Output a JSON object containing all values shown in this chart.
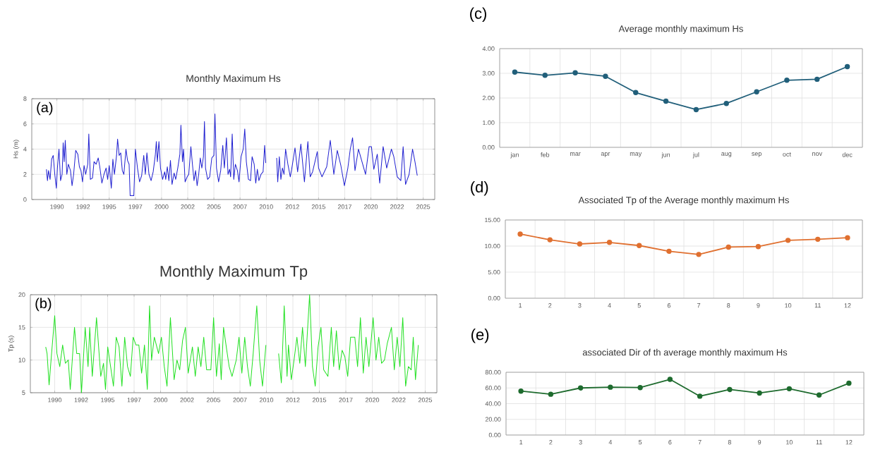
{
  "chart_data": [
    {
      "type": "line",
      "title": "Monthly Maximum Hs",
      "ylabel": "Hs (m)",
      "annotations": [
        "(a)"
      ],
      "color": "#2020d0",
      "grid": true,
      "xlim": [
        1987.6,
        2026.1
      ],
      "ylim": [
        0,
        8
      ],
      "yticks": [
        0,
        2,
        4,
        6,
        8
      ],
      "xticks": [
        {
          "value": 1990,
          "label": "1990"
        },
        {
          "value": 1992.5,
          "label": "1992"
        },
        {
          "value": 1995,
          "label": "1995"
        },
        {
          "value": 1997.5,
          "label": "1997"
        },
        {
          "value": 2000,
          "label": "2000"
        },
        {
          "value": 2002.5,
          "label": "2002"
        },
        {
          "value": 2005,
          "label": "2005"
        },
        {
          "value": 2007.5,
          "label": "2007"
        },
        {
          "value": 2010,
          "label": "2010"
        },
        {
          "value": 2012.5,
          "label": "2012"
        },
        {
          "value": 2015,
          "label": "2015"
        },
        {
          "value": 2017.5,
          "label": "2017"
        },
        {
          "value": 2020,
          "label": "2020"
        },
        {
          "value": 2022.5,
          "label": "2022"
        },
        {
          "value": 2025,
          "label": "2025"
        }
      ],
      "x": [
        1989.0,
        1989.1,
        1989.2,
        1989.35,
        1989.5,
        1989.65,
        1989.8,
        1989.95,
        1990.05,
        1990.2,
        1990.35,
        1990.5,
        1990.6,
        1990.7,
        1990.8,
        1990.95,
        1991.1,
        1991.3,
        1991.45,
        1991.6,
        1991.8,
        1992.0,
        1992.15,
        1992.3,
        1992.45,
        1992.6,
        1992.75,
        1992.95,
        1993.05,
        1993.2,
        1993.4,
        1993.55,
        1993.75,
        1993.95,
        1994.1,
        1994.3,
        1994.5,
        1994.7,
        1994.85,
        1995.0,
        1995.2,
        1995.35,
        1995.5,
        1995.7,
        1995.8,
        1995.95,
        1996.1,
        1996.25,
        1996.4,
        1996.6,
        1996.75,
        1996.9,
        1997.0,
        1997.35,
        1997.5,
        1997.7,
        1997.9,
        1998.1,
        1998.3,
        1998.45,
        1998.6,
        1998.8,
        1999.0,
        1999.2,
        1999.4,
        1999.5,
        1999.6,
        1999.75,
        1999.9,
        2000.1,
        2000.3,
        2000.4,
        2000.55,
        2000.7,
        2000.85,
        2001.0,
        2001.2,
        2001.35,
        2001.55,
        2001.75,
        2001.85,
        2002.0,
        2002.1,
        2002.25,
        2002.45,
        2002.6,
        2002.8,
        2002.95,
        2003.1,
        2003.25,
        2003.4,
        2003.55,
        2003.7,
        2003.85,
        2004.0,
        2004.1,
        2004.2,
        2004.4,
        2004.6,
        2004.8,
        2005.0,
        2005.1,
        2005.25,
        2005.45,
        2005.65,
        2005.85,
        2006.0,
        2006.2,
        2006.35,
        2006.5,
        2006.6,
        2006.75,
        2006.9,
        2007.05,
        2007.25,
        2007.4,
        2007.6,
        2007.8,
        2007.95,
        2008.1,
        2008.3,
        2008.5,
        2008.65,
        2008.85,
        2009.0,
        2009.15,
        2009.3,
        2009.5,
        2009.7,
        2009.85,
        2009.95,
        2010.5,
        2011.0,
        2011.1,
        2011.25,
        2011.4,
        2011.55,
        2011.7,
        2011.85,
        2012.07,
        2012.3,
        2012.45,
        2012.75,
        2013.0,
        2013.31,
        2013.65,
        2013.98,
        2014.2,
        2014.43,
        2014.88,
        2015.0,
        2015.33,
        2015.78,
        2016.12,
        2016.46,
        2016.79,
        2017.13,
        2017.47,
        2017.8,
        2018.03,
        2018.25,
        2018.48,
        2018.81,
        2019.15,
        2019.49,
        2019.83,
        2020.05,
        2020.28,
        2020.61,
        2020.84,
        2021.17,
        2021.51,
        2021.96,
        2022.19,
        2022.52,
        2022.86,
        2023.08,
        2023.31,
        2023.65,
        2023.98,
        2024.21,
        2024.43
      ],
      "values": [
        2.4,
        1.5,
        2.3,
        1.6,
        3.2,
        3.5,
        2.0,
        0.9,
        2.5,
        4.0,
        1.5,
        2.0,
        4.5,
        3.0,
        4.7,
        2.0,
        2.8,
        2.3,
        1.1,
        2.0,
        3.9,
        3.6,
        2.6,
        2.3,
        1.4,
        2.7,
        2.0,
        2.8,
        5.2,
        1.6,
        1.7,
        3.0,
        2.8,
        3.3,
        2.6,
        1.3,
        2.0,
        2.5,
        1.6,
        2.7,
        0.9,
        3.2,
        2.0,
        3.5,
        4.8,
        3.5,
        3.7,
        2.3,
        2.0,
        4.0,
        3.1,
        2.8,
        0.3,
        0.3,
        4.0,
        2.5,
        1.4,
        1.9,
        3.5,
        2.0,
        3.7,
        2.0,
        1.5,
        2.2,
        3.5,
        4.6,
        3.0,
        4.6,
        2.5,
        1.6,
        2.2,
        1.6,
        2.6,
        1.5,
        3.1,
        1.2,
        2.1,
        1.6,
        2.5,
        3.6,
        5.9,
        3.0,
        4.0,
        1.4,
        1.8,
        2.0,
        4.2,
        2.8,
        1.5,
        2.3,
        1.1,
        2.0,
        3.3,
        2.5,
        3.4,
        6.2,
        2.5,
        1.6,
        1.8,
        3.3,
        3.5,
        6.8,
        2.5,
        1.4,
        2.3,
        4.3,
        2.5,
        4.9,
        2.0,
        2.4,
        1.8,
        5.2,
        1.6,
        2.8,
        2.3,
        1.4,
        3.4,
        4.0,
        5.6,
        3.0,
        1.6,
        1.5,
        3.4,
        2.8,
        1.3,
        2.4,
        1.5,
        2.0,
        2.2,
        4.3,
        2.9,
        null,
        3.3,
        1.4,
        3.4,
        1.6,
        2.5,
        2.0,
        4.0,
        2.8,
        1.8,
        2.5,
        4.1,
        2.2,
        4.4,
        1.4,
        4.6,
        1.8,
        2.2,
        3.8,
        2.5,
        1.8,
        2.6,
        4.7,
        2.0,
        3.9,
        2.7,
        1.1,
        2.5,
        4.0,
        4.9,
        2.3,
        4.0,
        3.0,
        2.0,
        4.2,
        4.2,
        2.4,
        3.6,
        1.3,
        4.2,
        2.5,
        4.0,
        3.4,
        1.8,
        1.5,
        4.2,
        1.2,
        2.0,
        4.0,
        3.0,
        1.9
      ]
    },
    {
      "type": "line",
      "title": "Monthly Maximum Tp",
      "ylabel": "Tp (s)",
      "annotations": [
        "(b)"
      ],
      "color": "#22e022",
      "grid": true,
      "xlim": [
        1987.7,
        2026.1
      ],
      "ylim": [
        5,
        20
      ],
      "yticks": [
        5,
        10,
        15,
        20
      ],
      "xticks": [
        {
          "value": 1990,
          "label": "1990"
        },
        {
          "value": 1992.5,
          "label": "1992"
        },
        {
          "value": 1995,
          "label": "1995"
        },
        {
          "value": 1997.5,
          "label": "1997"
        },
        {
          "value": 2000,
          "label": "2000"
        },
        {
          "value": 2002.5,
          "label": "2002"
        },
        {
          "value": 2005,
          "label": "2005"
        },
        {
          "value": 2007.5,
          "label": "2007"
        },
        {
          "value": 2010,
          "label": "2010"
        },
        {
          "value": 2012.5,
          "label": "2012"
        },
        {
          "value": 2015,
          "label": "2015"
        },
        {
          "value": 2017.5,
          "label": "2017"
        },
        {
          "value": 2020,
          "label": "2020"
        },
        {
          "value": 2022.5,
          "label": "2022"
        },
        {
          "value": 2025,
          "label": "2025"
        }
      ],
      "x": [
        1989.15,
        1989.28,
        1989.47,
        1989.68,
        1990.0,
        1990.21,
        1990.48,
        1990.75,
        1991.01,
        1991.28,
        1991.47,
        1991.87,
        1992.08,
        1992.35,
        1992.53,
        1992.88,
        1993.15,
        1993.31,
        1993.55,
        1993.95,
        1994.35,
        1994.61,
        1994.8,
        1995.01,
        1995.28,
        1995.55,
        1995.81,
        1996.08,
        1996.35,
        1996.61,
        1996.88,
        1997.15,
        1997.41,
        1997.68,
        1997.95,
        1998.21,
        1998.48,
        1998.75,
        1998.96,
        1999.15,
        1999.41,
        1999.81,
        2000.08,
        2000.35,
        2000.61,
        2000.93,
        2001.28,
        2001.55,
        2001.81,
        2002.08,
        2002.35,
        2002.61,
        2003.01,
        2003.28,
        2003.55,
        2003.81,
        2004.08,
        2004.35,
        2004.75,
        2005.01,
        2005.28,
        2005.55,
        2005.73,
        2005.95,
        2006.21,
        2006.48,
        2006.75,
        2007.15,
        2007.41,
        2007.68,
        2007.95,
        2008.21,
        2008.48,
        2008.75,
        2009.09,
        2009.36,
        2009.63,
        2009.95,
        2010.5,
        2011.15,
        2011.41,
        2011.68,
        2011.95,
        2012.08,
        2012.35,
        2012.61,
        2012.88,
        2013.15,
        2013.41,
        2013.68,
        2014.08,
        2014.35,
        2014.61,
        2014.88,
        2015.15,
        2015.41,
        2015.81,
        2016.13,
        2016.35,
        2016.61,
        2016.88,
        2017.15,
        2017.41,
        2017.68,
        2017.95,
        2018.35,
        2018.61,
        2018.88,
        2019.15,
        2019.41,
        2019.68,
        2020.08,
        2020.35,
        2020.61,
        2020.88,
        2021.15,
        2021.41,
        2021.81,
        2022.08,
        2022.35,
        2022.61,
        2022.88,
        2023.15,
        2023.41,
        2023.68,
        2023.87,
        2024.08,
        2024.35
      ],
      "values": [
        12,
        11,
        6.2,
        10.5,
        16.8,
        11,
        9,
        12.3,
        9.5,
        10,
        5.5,
        15,
        11,
        11,
        5,
        15,
        9,
        15,
        7.5,
        16.5,
        7.5,
        9.5,
        5.5,
        12,
        9,
        6,
        13.5,
        12,
        6,
        13.5,
        9,
        7.5,
        13.5,
        12.3,
        12.3,
        8,
        12.3,
        5.5,
        18.3,
        10,
        13.5,
        11,
        13.5,
        9,
        6,
        16.5,
        7,
        10,
        8.5,
        13,
        15,
        8,
        12,
        7.5,
        12,
        9,
        13.5,
        8.5,
        8.5,
        16.5,
        7.5,
        12.5,
        7,
        15,
        12,
        9,
        7.5,
        10,
        13.5,
        8,
        13.5,
        9,
        6,
        11,
        18.3,
        10,
        6,
        12.3,
        null,
        11,
        6.5,
        18.3,
        7.5,
        12.3,
        7,
        10,
        13.5,
        9.5,
        15,
        9,
        20,
        9,
        6,
        12,
        15,
        8.5,
        7.5,
        15,
        9,
        14.5,
        8.5,
        11.5,
        10.5,
        7.5,
        13.5,
        13.5,
        9,
        16.5,
        8,
        13.5,
        9,
        16.5,
        10,
        13.5,
        9.5,
        10,
        12.5,
        15,
        8.5,
        13.5,
        9,
        16.5,
        6,
        9,
        8.5,
        13.5,
        7,
        12.3
      ]
    },
    {
      "type": "line",
      "title": "Average monthly maximum Hs",
      "annotations": [
        "(c)"
      ],
      "color": "#215f7a",
      "grid": true,
      "marker": "circle",
      "categories": [
        "jan",
        "feb",
        "mar",
        "apr",
        "may",
        "jun",
        "jul",
        "aug",
        "sep",
        "oct",
        "nov",
        "dec"
      ],
      "values": [
        3.05,
        2.92,
        3.02,
        2.88,
        2.22,
        1.87,
        1.53,
        1.78,
        2.25,
        2.72,
        2.76,
        3.27
      ],
      "ylim": [
        0,
        4
      ],
      "yticks": [
        {
          "value": 0,
          "label": "0.00"
        },
        {
          "value": 1,
          "label": "1.00"
        },
        {
          "value": 2,
          "label": "2.00"
        },
        {
          "value": 3,
          "label": "3.00"
        },
        {
          "value": 4,
          "label": "4.00"
        }
      ]
    },
    {
      "type": "line",
      "title": "Associated Tp of the Average monthly maximum Hs",
      "annotations": [
        "(d)"
      ],
      "color": "#e07030",
      "grid": true,
      "marker": "circle",
      "categories": [
        "1",
        "2",
        "3",
        "4",
        "5",
        "6",
        "7",
        "8",
        "9",
        "10",
        "11",
        "12"
      ],
      "values": [
        12.3,
        11.2,
        10.4,
        10.7,
        10.1,
        9.0,
        8.4,
        9.8,
        9.9,
        11.1,
        11.3,
        11.6
      ],
      "ylim": [
        0,
        15
      ],
      "yticks": [
        {
          "value": 0,
          "label": "0.00"
        },
        {
          "value": 5,
          "label": "5.00"
        },
        {
          "value": 10,
          "label": "10.00"
        },
        {
          "value": 15,
          "label": "15.00"
        }
      ]
    },
    {
      "type": "line",
      "title": "associated Dir of th average monthly maximum Hs",
      "annotations": [
        "(e)"
      ],
      "color": "#1e6b2e",
      "grid": true,
      "marker": "circle",
      "categories": [
        "1",
        "2",
        "3",
        "4",
        "5",
        "6",
        "7",
        "8",
        "9",
        "10",
        "11",
        "12"
      ],
      "values": [
        56,
        52,
        60,
        61,
        60.5,
        71,
        49.5,
        58,
        53.5,
        59,
        51,
        66
      ],
      "ylim": [
        0,
        80
      ],
      "yticks": [
        {
          "value": 0,
          "label": "0.00"
        },
        {
          "value": 20,
          "label": "20.00"
        },
        {
          "value": 40,
          "label": "40.00"
        },
        {
          "value": 60,
          "label": "60.00"
        },
        {
          "value": 80,
          "label": "80.00"
        }
      ]
    }
  ]
}
